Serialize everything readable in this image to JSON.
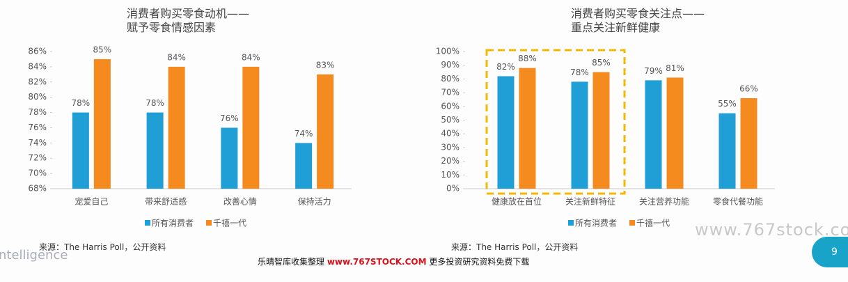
{
  "chart_data": [
    {
      "type": "bar",
      "title": "消费者购买零食动机——\n赋予零食情感因素",
      "categories": [
        "宠爱自己",
        "带来舒适感",
        "改善心情",
        "保持活力"
      ],
      "series": [
        {
          "name": "所有消费者",
          "color": "#1f9fd5",
          "values": [
            78,
            78,
            76,
            74
          ],
          "value_labels": [
            "78%",
            "78%",
            "76%",
            "74%"
          ]
        },
        {
          "name": "千禧一代",
          "color": "#f58a1f",
          "values": [
            85,
            84,
            84,
            83
          ],
          "value_labels": [
            "85%",
            "84%",
            "84%",
            "83%"
          ]
        }
      ],
      "ylim": [
        68,
        86
      ],
      "yticks": [
        {
          "value": 68,
          "label": "68%"
        },
        {
          "value": 70,
          "label": "70%"
        },
        {
          "value": 72,
          "label": "72%"
        },
        {
          "value": 74,
          "label": "74%"
        },
        {
          "value": 76,
          "label": "76%"
        },
        {
          "value": 78,
          "label": "78%"
        },
        {
          "value": 80,
          "label": "80%"
        },
        {
          "value": 82,
          "label": "82%"
        },
        {
          "value": 84,
          "label": "84%"
        },
        {
          "value": 86,
          "label": "86%"
        }
      ],
      "grid": false,
      "source": "来源：The Harris Poll，公开资料"
    },
    {
      "type": "bar",
      "title": "消费者购买零食关注点——\n重点关注新鲜健康",
      "categories": [
        "健康放在首位",
        "关注新鲜特征",
        "关注营养功能",
        "零食代餐功能"
      ],
      "series": [
        {
          "name": "所有消费者",
          "color": "#1f9fd5",
          "values": [
            82,
            78,
            79,
            55
          ],
          "value_labels": [
            "82%",
            "78%",
            "79%",
            "55%"
          ]
        },
        {
          "name": "千禧一代",
          "color": "#f58a1f",
          "values": [
            88,
            85,
            81,
            66
          ],
          "value_labels": [
            "88%",
            "85%",
            "81%",
            "66%"
          ]
        }
      ],
      "ylim": [
        0,
        100
      ],
      "yticks": [
        {
          "value": 0,
          "label": "0%"
        },
        {
          "value": 10,
          "label": "10%"
        },
        {
          "value": 20,
          "label": "20%"
        },
        {
          "value": 30,
          "label": "30%"
        },
        {
          "value": 40,
          "label": "40%"
        },
        {
          "value": 50,
          "label": "50%"
        },
        {
          "value": 60,
          "label": "60%"
        },
        {
          "value": 70,
          "label": "70%"
        },
        {
          "value": 80,
          "label": "80%"
        },
        {
          "value": 90,
          "label": "90%"
        },
        {
          "value": 100,
          "label": "100%"
        }
      ],
      "grid": false,
      "source": "来源：The Harris Poll，公开资料"
    }
  ],
  "watermark": "www.767stock.com",
  "brand_fragment": "ntelligence",
  "footer": [
    "乐晴智库收集整理 ",
    "www.767STOCK.COM",
    " 更多投资研究资料免费下载"
  ],
  "page_number": "9"
}
